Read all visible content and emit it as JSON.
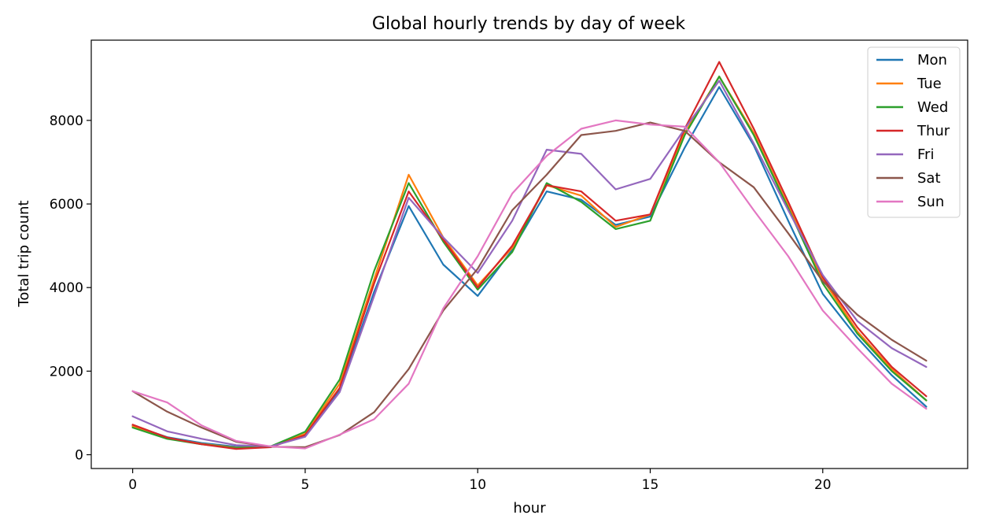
{
  "chart_data": {
    "type": "line",
    "title": "Global hourly trends by day of week",
    "xlabel": "hour",
    "ylabel": "Total trip count",
    "xlim": [
      -1.2,
      24.2
    ],
    "ylim": [
      -330,
      9920
    ],
    "xticks": [
      0,
      5,
      10,
      15,
      20
    ],
    "yticks": [
      0,
      2000,
      4000,
      6000,
      8000
    ],
    "grid": false,
    "legend_position": "top-right",
    "x": [
      0,
      1,
      2,
      3,
      4,
      5,
      6,
      7,
      8,
      9,
      10,
      11,
      12,
      13,
      14,
      15,
      16,
      17,
      18,
      19,
      20,
      21,
      22,
      23
    ],
    "series": [
      {
        "name": "Mon",
        "color": "#1f77b4",
        "values": [
          700,
          420,
          280,
          190,
          200,
          450,
          1550,
          3900,
          5950,
          4550,
          3800,
          4900,
          6300,
          6100,
          5500,
          5700,
          7350,
          8800,
          7400,
          5600,
          3850,
          2800,
          1900,
          1150
        ]
      },
      {
        "name": "Tue",
        "color": "#ff7f0e",
        "values": [
          680,
          400,
          260,
          170,
          180,
          500,
          1700,
          4200,
          6700,
          5200,
          4050,
          4950,
          6450,
          6200,
          5450,
          5750,
          7700,
          9050,
          7700,
          5950,
          4200,
          2950,
          2050,
          1300
        ]
      },
      {
        "name": "Wed",
        "color": "#2ca02c",
        "values": [
          650,
          380,
          250,
          160,
          200,
          550,
          1800,
          4400,
          6500,
          5100,
          3950,
          4850,
          6500,
          6050,
          5400,
          5600,
          7650,
          9050,
          7650,
          5900,
          4100,
          2900,
          2000,
          1300
        ]
      },
      {
        "name": "Thur",
        "color": "#d62728",
        "values": [
          720,
          410,
          250,
          140,
          180,
          470,
          1600,
          4100,
          6300,
          5150,
          4000,
          5000,
          6450,
          6300,
          5600,
          5750,
          7800,
          9400,
          7800,
          6050,
          4250,
          3050,
          2100,
          1400
        ]
      },
      {
        "name": "Fri",
        "color": "#9467bd",
        "values": [
          920,
          560,
          380,
          230,
          200,
          430,
          1500,
          3800,
          6150,
          5200,
          4350,
          5600,
          7300,
          7200,
          6350,
          6600,
          7800,
          8950,
          7450,
          5850,
          4300,
          3200,
          2550,
          2100
        ]
      },
      {
        "name": "Sat",
        "color": "#8c564b",
        "values": [
          1520,
          1030,
          650,
          310,
          190,
          180,
          470,
          1020,
          2050,
          3450,
          4450,
          5850,
          6700,
          7650,
          7750,
          7950,
          7750,
          7000,
          6400,
          5300,
          4150,
          3350,
          2750,
          2250
        ]
      },
      {
        "name": "Sun",
        "color": "#e377c2",
        "values": [
          1520,
          1250,
          700,
          330,
          200,
          150,
          480,
          850,
          1700,
          3500,
          4750,
          6250,
          7150,
          7800,
          8000,
          7900,
          7850,
          7000,
          5850,
          4750,
          3450,
          2550,
          1700,
          1100
        ]
      }
    ]
  }
}
